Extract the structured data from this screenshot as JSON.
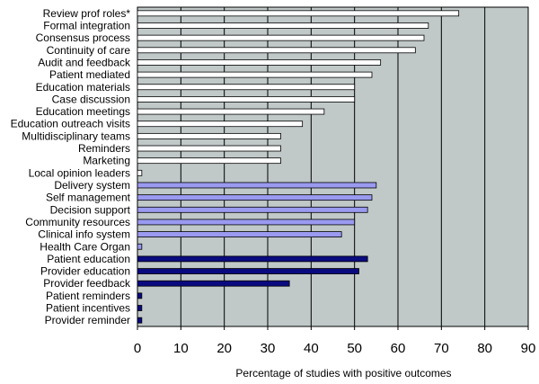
{
  "chart_data": {
    "type": "bar",
    "orientation": "horizontal",
    "xlabel": "Percentage of studies with positive outcomes",
    "xlim": [
      0,
      90
    ],
    "xticks": [
      0,
      10,
      20,
      30,
      40,
      50,
      60,
      70,
      80,
      90
    ],
    "grid": true,
    "plot_background": "#c0c8c8",
    "categories": [
      "Review prof roles*",
      "Formal integration",
      "Consensus process",
      "Continuity of care",
      "Audit and feedback",
      "Patient mediated",
      "Education materials",
      "Case discussion",
      "Education meetings",
      "Education outreach visits",
      "Multidisciplinary teams",
      "Reminders",
      "Marketing",
      "Local opinion leaders",
      "Delivery system",
      "Self management",
      "Decision support",
      "Community resources",
      "Clinical info system",
      "Health Care Organ",
      "Patient education",
      "Provider education",
      "Provider feedback",
      "Patient reminders",
      "Patient incentives",
      "Provider reminder"
    ],
    "values": [
      74,
      67,
      66,
      64,
      56,
      54,
      50,
      50,
      43,
      38,
      33,
      33,
      33,
      1,
      55,
      54,
      53,
      50,
      47,
      1,
      53,
      51,
      35,
      1,
      1,
      1
    ],
    "groups": [
      {
        "color": "#ffffff",
        "count": 14
      },
      {
        "color": "#9a9af0",
        "count": 6
      },
      {
        "color": "#0a0a80",
        "count": 6
      }
    ]
  }
}
